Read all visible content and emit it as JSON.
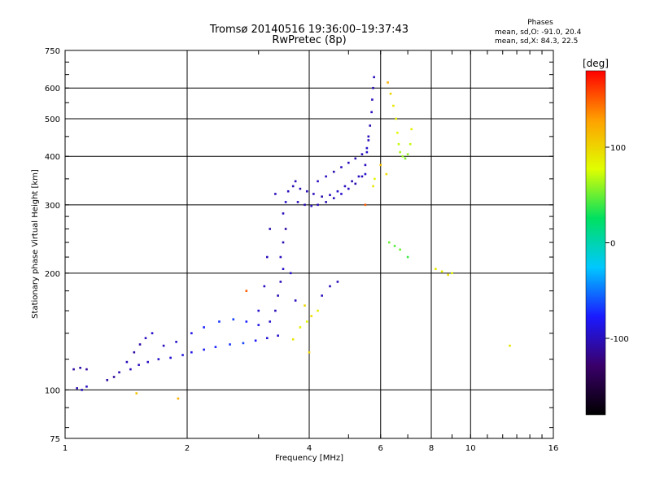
{
  "title_line1": "Tromsø 20140516 19:36:00–19:37:43",
  "title_line2": "RwPretec (8p)",
  "stats": {
    "heading": "Phases",
    "line_o": "mean, sd,O: -91.0, 20.4",
    "line_x": "mean, sd,X:  84.3, 22.5"
  },
  "chart_data": {
    "type": "scatter",
    "xlabel": "Frequency [MHz]",
    "ylabel": "Stationary phase Virtual Height [km]",
    "x_scale": "log",
    "y_scale": "log",
    "xlim": [
      1,
      16
    ],
    "ylim": [
      75,
      750
    ],
    "x_ticks": [
      1,
      2,
      4,
      6,
      8,
      10,
      16
    ],
    "y_ticks": [
      75,
      100,
      200,
      300,
      400,
      500,
      600,
      750
    ],
    "grid": true,
    "colorbar": {
      "label": "[deg]",
      "range": [
        -180,
        180
      ],
      "ticks": [
        100,
        0,
        -100
      ],
      "colormap": [
        "#000000",
        "#3a006a",
        "#1a1aff",
        "#00c8ff",
        "#00e060",
        "#e0ff00",
        "#ffa000",
        "#ff0000"
      ]
    },
    "series": [
      {
        "mode": "O",
        "points": [
          [
            1.05,
            113,
            -110
          ],
          [
            1.09,
            114,
            -108
          ],
          [
            1.13,
            113,
            -112
          ],
          [
            1.07,
            101,
            -105
          ],
          [
            1.1,
            100,
            -100
          ],
          [
            1.13,
            102,
            -98
          ],
          [
            1.27,
            106,
            -110
          ],
          [
            1.32,
            108,
            -112
          ],
          [
            1.36,
            111,
            -105
          ],
          [
            1.42,
            118,
            -102
          ],
          [
            1.48,
            125,
            -110
          ],
          [
            1.53,
            131,
            -108
          ],
          [
            1.58,
            136,
            -100
          ],
          [
            1.64,
            140,
            -95
          ],
          [
            1.45,
            113,
            -100
          ],
          [
            1.52,
            116,
            -100
          ],
          [
            1.6,
            118,
            -98
          ],
          [
            1.7,
            120,
            -95
          ],
          [
            1.82,
            121,
            -92
          ],
          [
            1.95,
            123,
            -90
          ],
          [
            2.05,
            125,
            -85
          ],
          [
            2.2,
            127,
            -80
          ],
          [
            2.35,
            129,
            -75
          ],
          [
            2.55,
            131,
            -70
          ],
          [
            2.75,
            132,
            -65
          ],
          [
            2.95,
            134,
            -80
          ],
          [
            3.15,
            136,
            -90
          ],
          [
            3.35,
            138,
            -95
          ],
          [
            1.75,
            130,
            -100
          ],
          [
            1.88,
            133,
            -95
          ],
          [
            2.05,
            140,
            -85
          ],
          [
            2.2,
            145,
            -75
          ],
          [
            2.4,
            150,
            -70
          ],
          [
            2.6,
            152,
            -65
          ],
          [
            2.8,
            150,
            -75
          ],
          [
            3.0,
            147,
            -85
          ],
          [
            3.2,
            150,
            -95
          ],
          [
            3.3,
            160,
            -100
          ],
          [
            3.35,
            175,
            -105
          ],
          [
            3.4,
            190,
            -100
          ],
          [
            3.45,
            205,
            -95
          ],
          [
            3.4,
            220,
            -100
          ],
          [
            3.45,
            240,
            -105
          ],
          [
            3.5,
            260,
            -110
          ],
          [
            3.45,
            285,
            -100
          ],
          [
            3.5,
            305,
            -95
          ],
          [
            3.55,
            325,
            -100
          ],
          [
            3.65,
            335,
            -105
          ],
          [
            3.7,
            345,
            -100
          ],
          [
            3.3,
            320,
            -100
          ],
          [
            3.2,
            260,
            -105
          ],
          [
            3.15,
            220,
            -100
          ],
          [
            3.1,
            185,
            -100
          ],
          [
            3.0,
            160,
            -95
          ],
          [
            3.6,
            200,
            -95
          ],
          [
            3.7,
            170,
            -100
          ],
          [
            3.8,
            330,
            -105
          ],
          [
            3.95,
            325,
            -100
          ],
          [
            4.1,
            320,
            -100
          ],
          [
            4.3,
            315,
            -105
          ],
          [
            4.5,
            318,
            -100
          ],
          [
            4.7,
            325,
            -95
          ],
          [
            4.9,
            335,
            -100
          ],
          [
            5.1,
            345,
            -105
          ],
          [
            5.3,
            355,
            -100
          ],
          [
            5.5,
            360,
            -95
          ],
          [
            3.75,
            305,
            -100
          ],
          [
            3.9,
            300,
            -105
          ],
          [
            4.05,
            298,
            -100
          ],
          [
            4.2,
            300,
            -100
          ],
          [
            4.4,
            305,
            -105
          ],
          [
            4.6,
            312,
            -100
          ],
          [
            4.8,
            320,
            -95
          ],
          [
            5.0,
            330,
            -100
          ],
          [
            5.2,
            340,
            -105
          ],
          [
            5.4,
            355,
            -100
          ],
          [
            4.2,
            345,
            -100
          ],
          [
            4.4,
            355,
            -100
          ],
          [
            4.6,
            365,
            -105
          ],
          [
            4.8,
            375,
            -100
          ],
          [
            5.0,
            385,
            -100
          ],
          [
            5.2,
            395,
            -105
          ],
          [
            5.4,
            405,
            -100
          ],
          [
            5.55,
            420,
            -95
          ],
          [
            5.6,
            450,
            -100
          ],
          [
            5.65,
            480,
            -105
          ],
          [
            5.7,
            520,
            -100
          ],
          [
            5.72,
            560,
            -100
          ],
          [
            5.75,
            600,
            -105
          ],
          [
            5.78,
            640,
            -100
          ],
          [
            5.5,
            380,
            -100
          ],
          [
            5.55,
            410,
            -95
          ],
          [
            5.6,
            440,
            -100
          ],
          [
            4.5,
            185,
            -100
          ],
          [
            4.7,
            190,
            -100
          ],
          [
            4.3,
            175,
            -100
          ]
        ]
      },
      {
        "mode": "X",
        "points": [
          [
            3.65,
            135,
            90
          ],
          [
            3.8,
            145,
            85
          ],
          [
            3.95,
            150,
            80
          ],
          [
            4.05,
            155,
            95
          ],
          [
            3.9,
            165,
            100
          ],
          [
            4.2,
            160,
            85
          ],
          [
            6.25,
            620,
            120
          ],
          [
            6.35,
            580,
            100
          ],
          [
            6.45,
            540,
            90
          ],
          [
            6.55,
            500,
            85
          ],
          [
            6.6,
            460,
            80
          ],
          [
            6.65,
            430,
            70
          ],
          [
            6.7,
            410,
            65
          ],
          [
            6.8,
            400,
            60
          ],
          [
            6.9,
            395,
            55
          ],
          [
            7.0,
            405,
            60
          ],
          [
            7.1,
            430,
            70
          ],
          [
            7.15,
            470,
            85
          ],
          [
            6.3,
            240,
            50
          ],
          [
            6.5,
            235,
            45
          ],
          [
            6.7,
            230,
            50
          ],
          [
            7.0,
            220,
            40
          ],
          [
            8.2,
            205,
            90
          ],
          [
            8.5,
            202,
            85
          ],
          [
            9.0,
            200,
            80
          ],
          [
            8.8,
            198,
            95
          ],
          [
            5.8,
            350,
            80
          ],
          [
            5.75,
            335,
            90
          ],
          [
            6.0,
            380,
            110
          ],
          [
            6.2,
            360,
            95
          ],
          [
            5.5,
            300,
            150
          ],
          [
            4.0,
            125,
            100
          ],
          [
            1.5,
            98,
            110
          ],
          [
            1.9,
            95,
            120
          ],
          [
            2.8,
            180,
            150
          ],
          [
            12.5,
            130,
            90
          ]
        ]
      }
    ]
  }
}
